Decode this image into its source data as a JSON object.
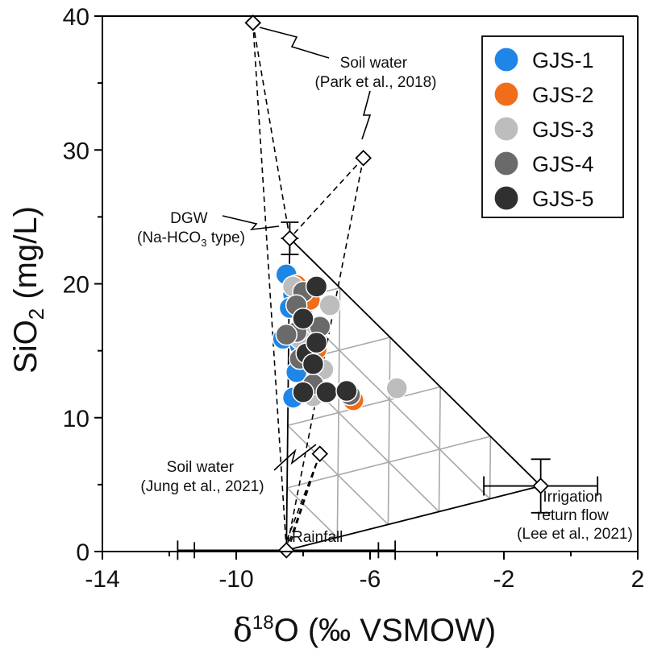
{
  "chart_data": {
    "type": "scatter",
    "xlabel": "δ18O (‰ VSMOW)",
    "xlabel_parts": {
      "delta": "δ",
      "sup": "18",
      "rest": "O (‰ VSMOW)"
    },
    "ylabel": "SiO2 (mg/L)",
    "ylabel_parts": {
      "main": "SiO",
      "sub": "2",
      "rest": " (mg/L)"
    },
    "xlim": [
      -14,
      2
    ],
    "ylim": [
      0,
      40
    ],
    "xticks": [
      -14,
      -10,
      -6,
      -2,
      2
    ],
    "xtick_labels": [
      "-14",
      "-10",
      "-6",
      "-2",
      "2"
    ],
    "yticks": [
      0,
      10,
      20,
      30,
      40
    ],
    "ytick_labels": [
      "0",
      "10",
      "20",
      "30",
      "40"
    ],
    "legend_position": "top-right",
    "series": [
      {
        "name": "GJS-1",
        "color": "#1e86e6",
        "points": [
          [
            -8.5,
            20.7
          ],
          [
            -8.3,
            19.2
          ],
          [
            -8.4,
            18.2
          ],
          [
            -8.0,
            17.6
          ],
          [
            -8.6,
            15.9
          ],
          [
            -8.1,
            15.4
          ],
          [
            -8.3,
            11.5
          ],
          [
            -8.2,
            13.4
          ]
        ]
      },
      {
        "name": "GJS-2",
        "color": "#f06d1a",
        "points": [
          [
            -7.8,
            18.8
          ],
          [
            -7.6,
            15.1
          ],
          [
            -7.7,
            14.0
          ],
          [
            -6.5,
            11.3
          ],
          [
            -8.2,
            19.9
          ],
          [
            -7.9,
            17.0
          ]
        ]
      },
      {
        "name": "GJS-3",
        "color": "#bdbdbd",
        "points": [
          [
            -8.3,
            19.8
          ],
          [
            -7.2,
            18.4
          ],
          [
            -7.4,
            13.6
          ],
          [
            -7.7,
            11.6
          ],
          [
            -5.2,
            12.2
          ],
          [
            -8.0,
            16.6
          ],
          [
            -8.1,
            15.9
          ]
        ]
      },
      {
        "name": "GJS-4",
        "color": "#6a6a6a",
        "points": [
          [
            -8.0,
            19.4
          ],
          [
            -8.2,
            18.4
          ],
          [
            -7.5,
            16.8
          ],
          [
            -8.2,
            16.4
          ],
          [
            -8.5,
            16.2
          ],
          [
            -7.7,
            12.5
          ],
          [
            -6.6,
            11.7
          ],
          [
            -8.1,
            14.4
          ]
        ]
      },
      {
        "name": "GJS-5",
        "color": "#303030",
        "points": [
          [
            -7.6,
            19.8
          ],
          [
            -8.0,
            17.4
          ],
          [
            -7.9,
            14.8
          ],
          [
            -7.7,
            14.0
          ],
          [
            -8.0,
            11.9
          ],
          [
            -7.3,
            11.9
          ],
          [
            -6.7,
            12.0
          ],
          [
            -7.6,
            15.6
          ]
        ]
      }
    ],
    "end_members": [
      {
        "name": "DGW",
        "x": -8.4,
        "y": 23.4,
        "xerr": 0.0,
        "yerr": 1.2
      },
      {
        "name": "Rainfall",
        "x": -8.5,
        "y": 0.1,
        "xerr": 2.75,
        "xerr_outer": 3.25
      },
      {
        "name": "Irrigation return flow",
        "x": -0.9,
        "y": 4.9,
        "xerr": 1.7,
        "yerr": 2.0
      },
      {
        "name": "Soil water Park 1",
        "x": -9.5,
        "y": 39.5
      },
      {
        "name": "Soil water Park 2",
        "x": -6.2,
        "y": 29.4
      },
      {
        "name": "Soil water Jung",
        "x": -7.5,
        "y": 7.3
      }
    ],
    "annotations": {
      "soil_park_line1": "Soil water",
      "soil_park_line2": "(Park et al., 2018)",
      "dgw_line1": "DGW",
      "dgw_line2_prefix": "(Na-HCO",
      "dgw_line2_sub": "3",
      "dgw_line2_suffix": " type)",
      "soil_jung_line1": "Soil water",
      "soil_jung_line2": "(Jung et al., 2021)",
      "rainfall": "Rainfall",
      "irr_line1": "Irrigation",
      "irr_line2": "return flow",
      "irr_line3": "(Lee et al., 2021)"
    }
  },
  "colors": {
    "axis": "#000000",
    "grid_triangle": "#a8a8a8",
    "point_edge": "#ffffff"
  }
}
